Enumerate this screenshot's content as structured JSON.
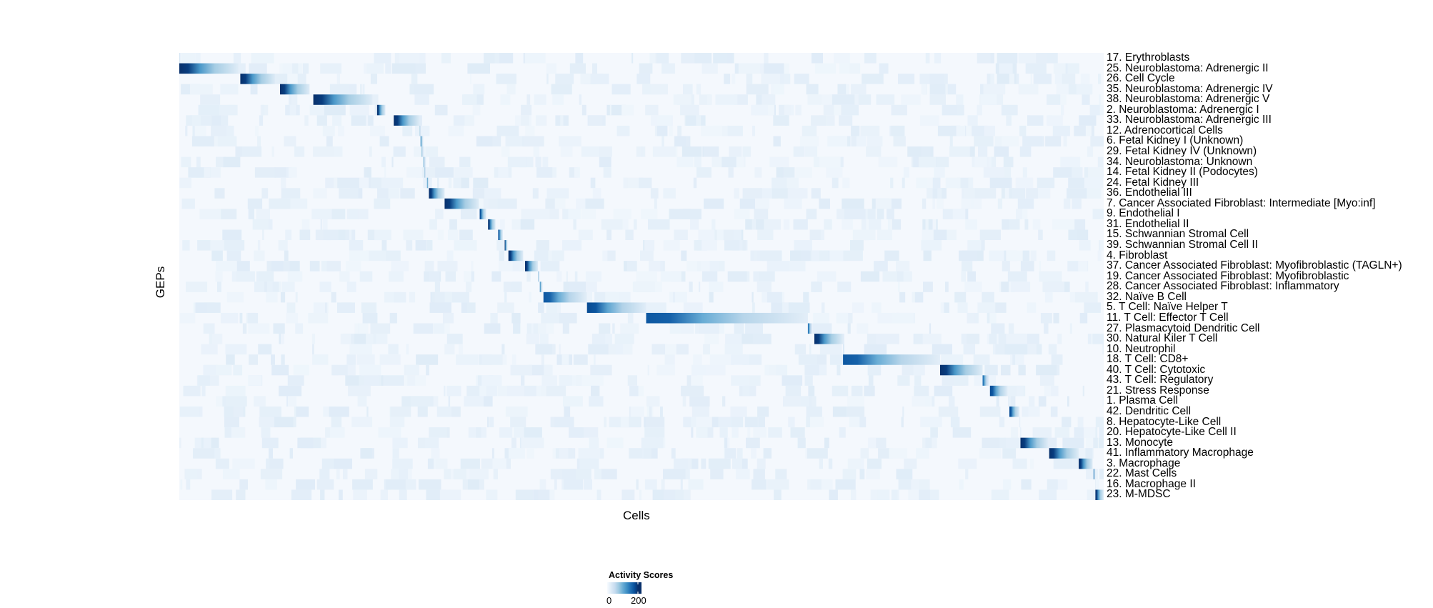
{
  "chart_data": {
    "type": "heatmap",
    "xlabel": "Cells",
    "ylabel": "GEPs",
    "x_unit": "percent of ordered cells",
    "color_scale": {
      "title": "Activity Scores",
      "min": 0,
      "max": 200,
      "ticks": [
        0,
        200
      ],
      "low_color": "#f7fbff",
      "high_color": "#08306b",
      "palette": [
        "#f7fbff",
        "#deebf7",
        "#c6dbef",
        "#9ecae1",
        "#6baed6",
        "#4292c6",
        "#2171b5",
        "#08519c",
        "#08306b"
      ]
    },
    "legend_placement": "bottom",
    "rows": [
      {
        "label": "17. Erythroblasts",
        "start": 0.0,
        "end": 0.2,
        "max": 40
      },
      {
        "label": "25. Neuroblastoma: Adrenergic II",
        "start": 0.0,
        "end": 6.4,
        "max": 200
      },
      {
        "label": "26. Cell Cycle",
        "start": 6.6,
        "end": 10.4,
        "max": 200
      },
      {
        "label": "35. Neuroblastoma: Adrenergic IV",
        "start": 10.9,
        "end": 14.1,
        "max": 200
      },
      {
        "label": "38. Neuroblastoma: Adrenergic V",
        "start": 14.5,
        "end": 20.9,
        "max": 200
      },
      {
        "label": "2. Neuroblastoma: Adrenergic I",
        "start": 21.4,
        "end": 22.3,
        "max": 200
      },
      {
        "label": "33. Neuroblastoma: Adrenergic III",
        "start": 23.2,
        "end": 26.0,
        "max": 200
      },
      {
        "label": "12. Adrenocortical Cells",
        "start": 26.0,
        "end": 26.2,
        "max": 70
      },
      {
        "label": "6. Fetal Kidney I (Unknown)",
        "start": 26.1,
        "end": 26.4,
        "max": 130
      },
      {
        "label": "29. Fetal Kidney IV (Unknown)",
        "start": 26.2,
        "end": 26.5,
        "max": 80
      },
      {
        "label": "34. Neuroblastoma: Unknown",
        "start": 26.4,
        "end": 26.7,
        "max": 90
      },
      {
        "label": "14. Fetal Kidney II (Podocytes)",
        "start": 26.5,
        "end": 26.8,
        "max": 70
      },
      {
        "label": "24. Fetal Kidney III",
        "start": 26.8,
        "end": 27.0,
        "max": 130
      },
      {
        "label": "36. Endothelial III",
        "start": 27.0,
        "end": 28.7,
        "max": 200
      },
      {
        "label": "7. Cancer Associated Fibroblast: Intermediate [Myo:inf]",
        "start": 28.7,
        "end": 32.4,
        "max": 200
      },
      {
        "label": "9. Endothelial I",
        "start": 32.5,
        "end": 33.2,
        "max": 180
      },
      {
        "label": "31. Endothelial II",
        "start": 33.4,
        "end": 34.2,
        "max": 200
      },
      {
        "label": "15. Schwannian Stromal Cell",
        "start": 34.5,
        "end": 35.0,
        "max": 180
      },
      {
        "label": "39. Schwannian Stromal Cell II",
        "start": 35.2,
        "end": 35.5,
        "max": 200
      },
      {
        "label": "4. Fibroblast",
        "start": 35.6,
        "end": 37.2,
        "max": 200
      },
      {
        "label": "37. Cancer Associated Fibroblast: Myofibroblastic (TAGLN+)",
        "start": 37.4,
        "end": 38.8,
        "max": 200
      },
      {
        "label": "19. Cancer Associated Fibroblast: Myofibroblastic",
        "start": 38.8,
        "end": 39.0,
        "max": 80
      },
      {
        "label": "28. Cancer Associated Fibroblast: Inflammatory",
        "start": 39.0,
        "end": 39.3,
        "max": 130
      },
      {
        "label": "32. Naïve B Cell",
        "start": 39.4,
        "end": 44.1,
        "max": 170
      },
      {
        "label": "5. T Cell: Naïve Helper T",
        "start": 44.1,
        "end": 50.5,
        "max": 180
      },
      {
        "label": "11. T Cell: Effector T Cell",
        "start": 50.5,
        "end": 68.0,
        "max": 170
      },
      {
        "label": "27. Plasmacytoid Dendritic Cell",
        "start": 68.0,
        "end": 68.5,
        "max": 150
      },
      {
        "label": "30. Natural Kiler T Cell",
        "start": 68.7,
        "end": 71.8,
        "max": 200
      },
      {
        "label": "10. Neutrophil",
        "start": 71.8,
        "end": 72.0,
        "max": 40
      },
      {
        "label": "18. T Cell: CD8+",
        "start": 71.8,
        "end": 82.3,
        "max": 170
      },
      {
        "label": "40. T Cell: Cytotoxic",
        "start": 82.3,
        "end": 86.9,
        "max": 200
      },
      {
        "label": "43. T Cell: Regulatory",
        "start": 86.9,
        "end": 87.6,
        "max": 150
      },
      {
        "label": "21. Stress Response",
        "start": 87.7,
        "end": 89.6,
        "max": 180
      },
      {
        "label": "1. Plasma Cell",
        "start": 89.7,
        "end": 89.9,
        "max": 40
      },
      {
        "label": "42. Dendritic Cell",
        "start": 89.8,
        "end": 90.9,
        "max": 180
      },
      {
        "label": "8. Hepatocyte-Like Cell",
        "start": 90.9,
        "end": 91.0,
        "max": 30
      },
      {
        "label": "20. Hepatocyte-Like Cell II",
        "start": 91.0,
        "end": 91.1,
        "max": 30
      },
      {
        "label": "13. Monocyte",
        "start": 91.0,
        "end": 94.0,
        "max": 200
      },
      {
        "label": "41. Inflammatory Macrophage",
        "start": 94.1,
        "end": 97.3,
        "max": 200
      },
      {
        "label": "3. Macrophage",
        "start": 97.3,
        "end": 98.8,
        "max": 200
      },
      {
        "label": "22. Mast Cells",
        "start": 98.9,
        "end": 99.1,
        "max": 150
      },
      {
        "label": "16. Macrophage II",
        "start": 99.1,
        "end": 99.2,
        "max": 30
      },
      {
        "label": "23. M-MDSC",
        "start": 99.1,
        "end": 100.0,
        "max": 200
      }
    ]
  }
}
